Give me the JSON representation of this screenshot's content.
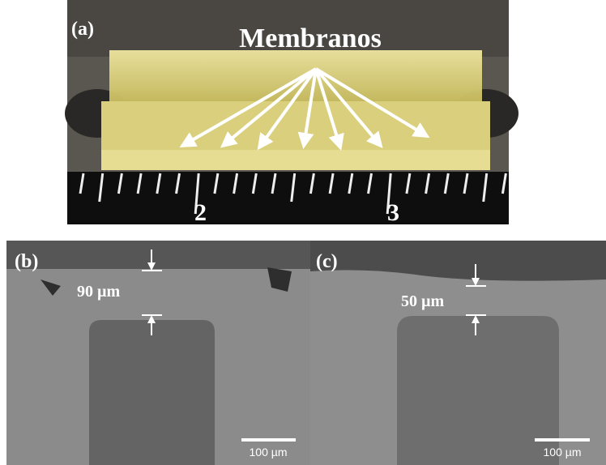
{
  "panels": [
    {
      "label": "(a)",
      "annotation": "Membranos",
      "ruler_labels": [
        "2",
        "3"
      ]
    },
    {
      "label": "(b)",
      "thickness": "90 µm",
      "scale_bar": "100 µm"
    },
    {
      "label": "(c)",
      "thickness": "50 µm",
      "scale_bar": "100 µm"
    }
  ]
}
